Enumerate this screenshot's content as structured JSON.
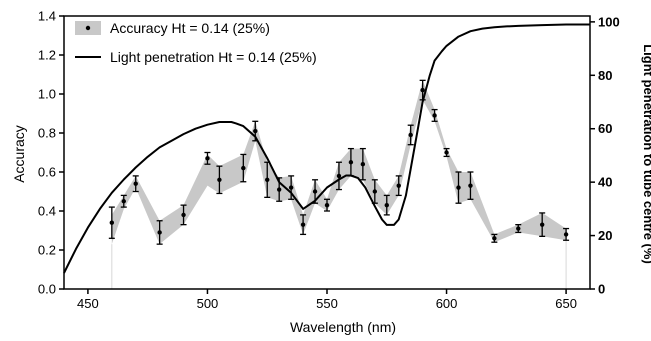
{
  "chart_data": {
    "type": "line",
    "xlabel": "Wavelength (nm)",
    "ylabel": "Accuracy",
    "y2label": "Light penetration to tube centre (%)",
    "xlim": [
      440,
      660
    ],
    "ylim": [
      0,
      1.4
    ],
    "y2lim": [
      0,
      102.2
    ],
    "x_ticks": [
      450,
      500,
      550,
      600,
      650
    ],
    "y_ticks": [
      0.0,
      0.2,
      0.4,
      0.6,
      0.8,
      1.0,
      1.2,
      1.4
    ],
    "y_tick_labels": [
      "0.0",
      "0.2",
      "0.4",
      "0.6",
      "0.8",
      "1.0",
      "1.2",
      "1.4"
    ],
    "y2_ticks": [
      0,
      20,
      40,
      60,
      80,
      100
    ],
    "legend_position": "top-left",
    "series": [
      {
        "name": "Accuracy Ht = 0.14 (25%)",
        "axis": "left",
        "style": "points with error bars and shaded band",
        "x": [
          460,
          465,
          470,
          480,
          490,
          500,
          505,
          515,
          520,
          525,
          530,
          535,
          540,
          545,
          550,
          555,
          560,
          565,
          570,
          575,
          580,
          585,
          590,
          595,
          600,
          605,
          610,
          620,
          630,
          640,
          650
        ],
        "y": [
          0.34,
          0.45,
          0.54,
          0.29,
          0.38,
          0.67,
          0.56,
          0.62,
          0.81,
          0.56,
          0.51,
          0.52,
          0.33,
          0.5,
          0.43,
          0.58,
          0.65,
          0.64,
          0.5,
          0.43,
          0.53,
          0.79,
          1.02,
          0.89,
          0.7,
          0.52,
          0.53,
          0.26,
          0.31,
          0.33,
          0.28
        ],
        "err": [
          0.08,
          0.03,
          0.04,
          0.06,
          0.05,
          0.03,
          0.07,
          0.07,
          0.05,
          0.09,
          0.06,
          0.06,
          0.05,
          0.06,
          0.03,
          0.07,
          0.07,
          0.08,
          0.06,
          0.05,
          0.05,
          0.05,
          0.05,
          0.03,
          0.02,
          0.08,
          0.07,
          0.02,
          0.02,
          0.06,
          0.03
        ],
        "band_low": [
          0.23,
          0.41,
          0.52,
          0.23,
          0.33,
          0.53,
          0.49,
          0.55,
          0.76,
          0.47,
          0.45,
          0.46,
          0.28,
          0.44,
          0.4,
          0.51,
          0.58,
          0.56,
          0.44,
          0.38,
          0.48,
          0.74,
          0.97,
          0.86,
          0.68,
          0.44,
          0.46,
          0.24,
          0.29,
          0.27,
          0.25
        ],
        "band_high": [
          0.38,
          0.48,
          0.58,
          0.35,
          0.43,
          0.69,
          0.63,
          0.69,
          0.86,
          0.65,
          0.57,
          0.58,
          0.38,
          0.56,
          0.46,
          0.65,
          0.72,
          0.72,
          0.56,
          0.48,
          0.58,
          0.84,
          1.07,
          0.92,
          0.72,
          0.6,
          0.6,
          0.28,
          0.33,
          0.39,
          0.31
        ]
      },
      {
        "name": "Light penetration Ht = 0.14 (25%)",
        "axis": "right",
        "style": "solid line",
        "x": [
          440,
          445,
          450,
          455,
          460,
          465,
          470,
          475,
          480,
          485,
          490,
          495,
          500,
          505,
          510,
          512,
          515,
          520,
          525,
          530,
          535,
          540,
          545,
          550,
          555,
          558,
          560,
          563,
          566,
          570,
          573,
          575,
          578,
          580,
          583,
          585,
          588,
          590,
          593,
          595,
          598,
          600,
          605,
          610,
          615,
          620,
          625,
          630,
          640,
          650,
          660
        ],
        "y": [
          6,
          15,
          23,
          30,
          36,
          41,
          45.5,
          49.5,
          53,
          55.5,
          58,
          60,
          61.5,
          62.5,
          62.5,
          62,
          61,
          57,
          49,
          40,
          36,
          30,
          33,
          38,
          41,
          42.5,
          42.5,
          41.5,
          38,
          31,
          26,
          24,
          24,
          26,
          35,
          45,
          60,
          70,
          80,
          85.5,
          89,
          91,
          94.5,
          96.5,
          97.5,
          98,
          98.3,
          98.5,
          98.8,
          99,
          99
        ]
      }
    ]
  }
}
